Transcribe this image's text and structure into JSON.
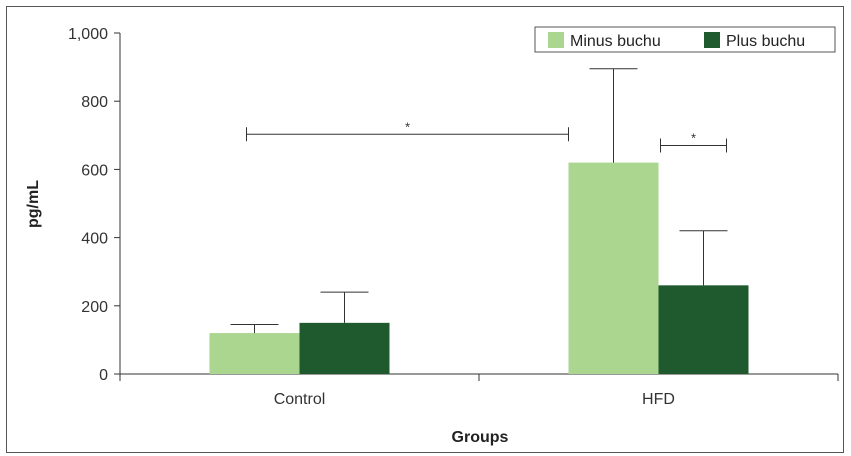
{
  "chart_data": {
    "type": "bar",
    "title": "",
    "xlabel": "Groups",
    "ylabel": "pg/mL",
    "ylim": [
      0,
      1000
    ],
    "yticks": [
      0,
      200,
      400,
      600,
      800,
      1000
    ],
    "ytick_labels": [
      "0",
      "200",
      "400",
      "600",
      "800",
      "1,000"
    ],
    "categories": [
      "Control",
      "HFD"
    ],
    "series": [
      {
        "name": "Minus buchu",
        "color": "#aad68f",
        "values": [
          120,
          620
        ],
        "error": [
          25,
          275
        ]
      },
      {
        "name": "Plus buchu",
        "color": "#1e5a2e",
        "values": [
          150,
          260
        ],
        "error": [
          90,
          160
        ]
      }
    ],
    "legend_position": "top-right",
    "grid": false,
    "significance": [
      {
        "label": "*",
        "from": "Control",
        "to": "HFD",
        "y": 700
      },
      {
        "label": "*",
        "from": "HFD Minus buchu",
        "to": "HFD Plus buchu",
        "y": 670
      }
    ]
  }
}
